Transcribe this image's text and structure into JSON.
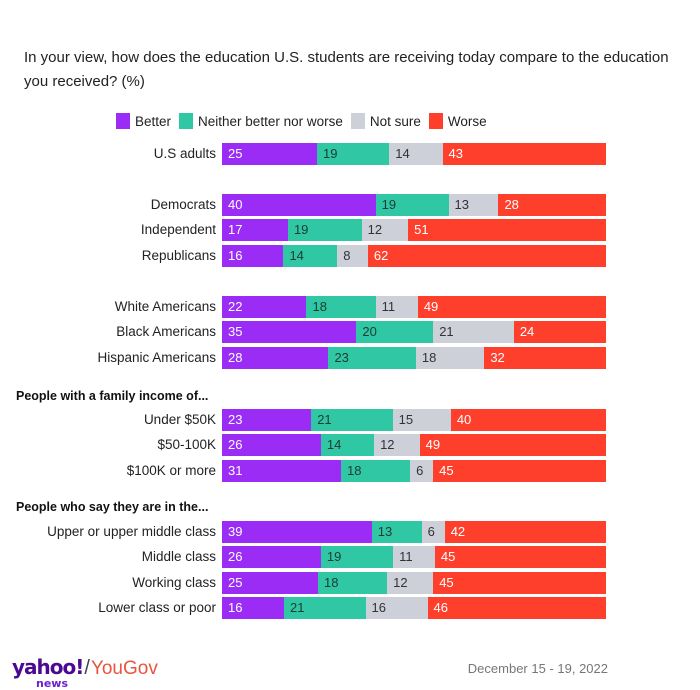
{
  "title": "In your view, how does the education U.S. students are receiving today compare to the education you received? (%)",
  "colors": {
    "Better": "#9b2cf5",
    "Neither better nor worse": "#2fc7a4",
    "Not sure": "#cdd0d9",
    "Worse": "#fe3f2c"
  },
  "label_colors": {
    "Better": "#ffffff",
    "Neither better nor worse": "#1f3b33",
    "Not sure": "#333333",
    "Worse": "#ffffff"
  },
  "sections": [
    {
      "title": ""
    },
    {
      "title": ""
    },
    {
      "title": ""
    },
    {
      "title": "People with a family income of..."
    },
    {
      "title": "People who say they are in the..."
    }
  ],
  "chart_data": {
    "type": "bar",
    "orientation": "horizontal",
    "stacked": true,
    "title": "In your view, how does the education U.S. students are receiving today compare to the education you received? (%)",
    "xlabel": "",
    "ylabel": "",
    "xlim": [
      0,
      100
    ],
    "legend": {
      "position": "top",
      "entries": [
        "Better",
        "Neither better nor worse",
        "Not sure",
        "Worse"
      ]
    },
    "categories": [
      "U.S adults",
      "Democrats",
      "Independent",
      "Republicans",
      "White Americans",
      "Black Americans",
      "Hispanic Americans",
      "Under $50K",
      "$50-100K",
      "$100K or more",
      "Upper or upper middle class",
      "Middle class",
      "Working class",
      "Lower class or poor"
    ],
    "groups": [
      {
        "title": "",
        "categories": [
          "U.S adults"
        ]
      },
      {
        "title": "",
        "categories": [
          "Democrats",
          "Independent",
          "Republicans"
        ]
      },
      {
        "title": "",
        "categories": [
          "White Americans",
          "Black Americans",
          "Hispanic Americans"
        ]
      },
      {
        "title": "People with a family income of...",
        "categories": [
          "Under $50K",
          "$50-100K",
          "$100K or more"
        ]
      },
      {
        "title": "People who say they are in the...",
        "categories": [
          "Upper or upper middle class",
          "Middle class",
          "Working class",
          "Lower class or poor"
        ]
      }
    ],
    "series": [
      {
        "name": "Better",
        "values": [
          25,
          40,
          17,
          16,
          22,
          35,
          28,
          23,
          26,
          31,
          39,
          26,
          25,
          16
        ]
      },
      {
        "name": "Neither better nor worse",
        "values": [
          19,
          19,
          19,
          14,
          18,
          20,
          23,
          21,
          14,
          18,
          13,
          19,
          18,
          21
        ]
      },
      {
        "name": "Not sure",
        "values": [
          14,
          13,
          12,
          8,
          11,
          21,
          18,
          15,
          12,
          6,
          6,
          11,
          12,
          16
        ]
      },
      {
        "name": "Worse",
        "values": [
          43,
          28,
          51,
          62,
          49,
          24,
          32,
          40,
          49,
          45,
          42,
          45,
          45,
          46
        ]
      }
    ]
  },
  "footer": {
    "logo_yahoo": "yahoo!",
    "logo_slash": "/",
    "logo_yougov": "YouGov",
    "logo_news": "news",
    "date": "December 15 - 19, 2022"
  }
}
